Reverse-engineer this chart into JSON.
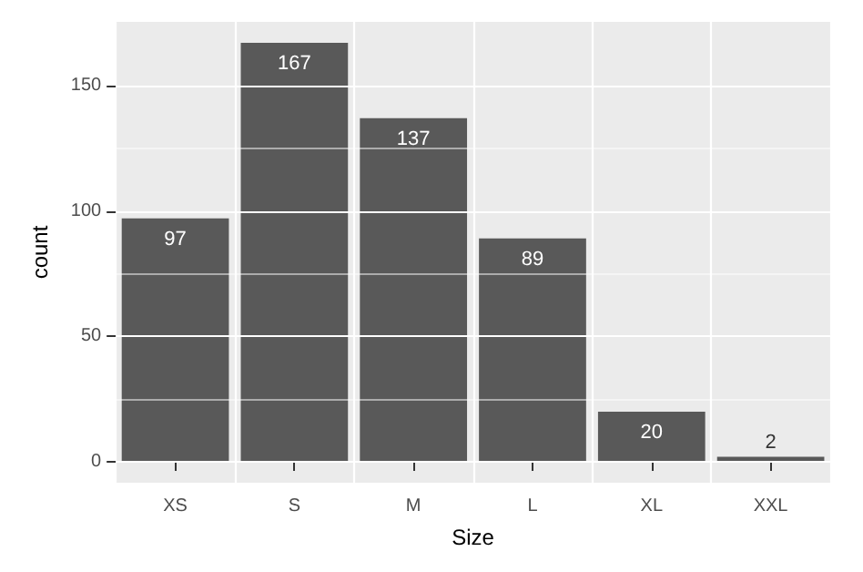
{
  "chart_data": {
    "type": "bar",
    "xlabel": "Size",
    "ylabel": "count",
    "categories": [
      "XS",
      "S",
      "M",
      "L",
      "XL",
      "XXL"
    ],
    "values": [
      97,
      167,
      137,
      89,
      20,
      2
    ],
    "color": "#595959",
    "ylim": [
      -8.35,
      175.35
    ],
    "yticks": [
      0,
      50,
      100,
      150
    ],
    "grid": true,
    "data_labels": true
  }
}
